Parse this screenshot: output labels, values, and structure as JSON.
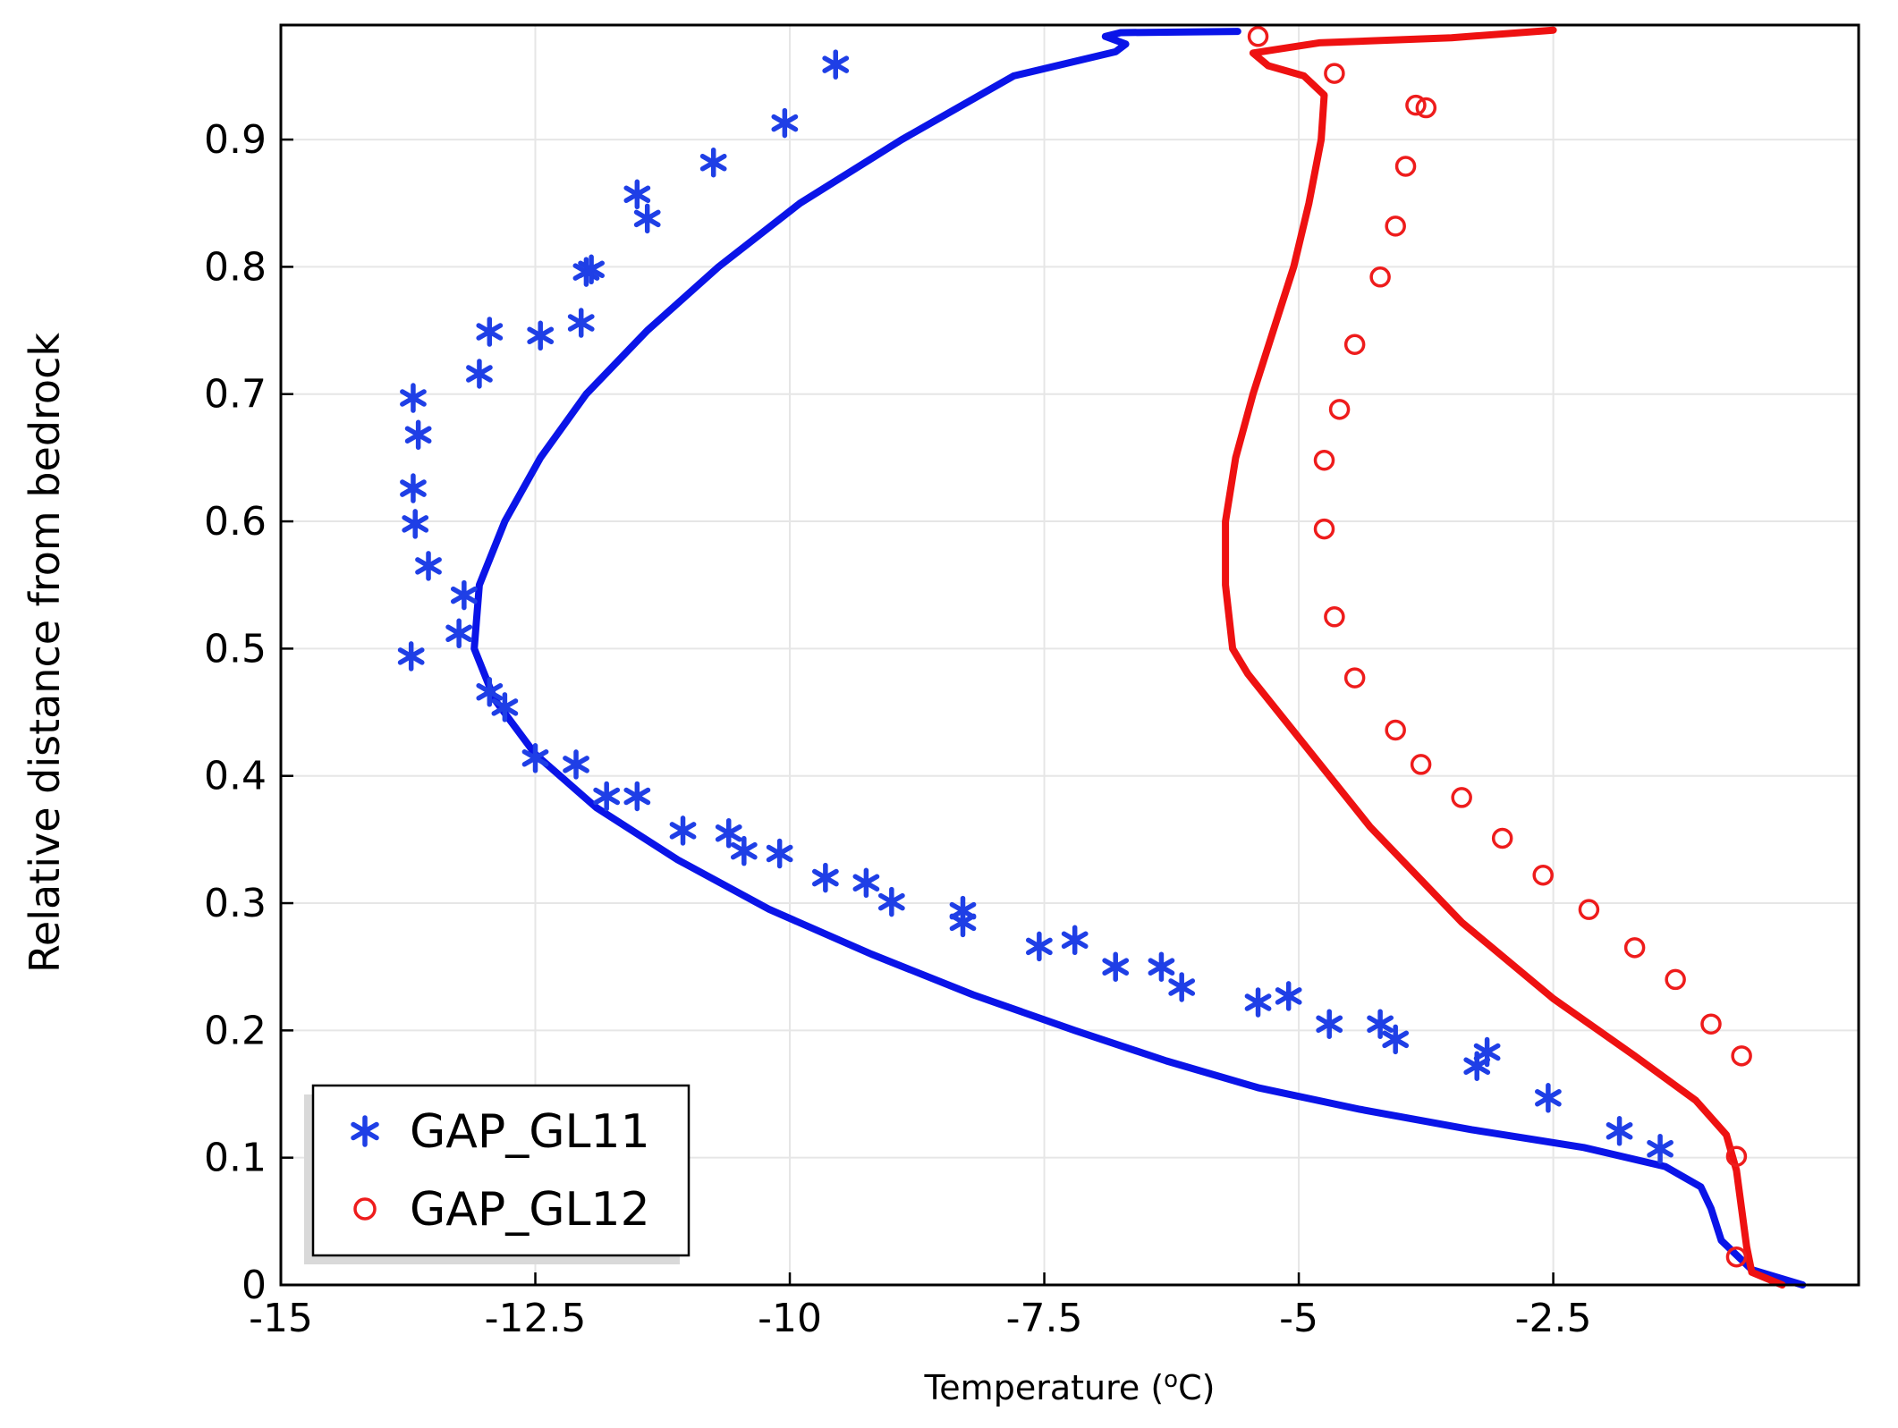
{
  "chart_data": {
    "type": "scatter",
    "title": "",
    "xlabel": "Temperature (",
    "xlabel_sup": "o",
    "xlabel_unit": "C)",
    "ylabel": "Relative distance from bedrock",
    "xlim": [
      -15,
      0.5
    ],
    "ylim": [
      0,
      0.99
    ],
    "grid": true,
    "legend_position": "bottom-left",
    "x_ticks": [
      -15,
      -12.5,
      -10,
      -7.5,
      -5,
      -2.5
    ],
    "x_tick_labels": [
      "-15",
      "-12.5",
      "-10",
      "-7.5",
      "-5",
      "-2.5"
    ],
    "y_ticks": [
      0,
      0.1,
      0.2,
      0.3,
      0.4,
      0.5,
      0.6,
      0.7,
      0.8,
      0.9
    ],
    "y_tick_labels": [
      "0",
      "0.1",
      "0.2",
      "0.3",
      "0.4",
      "0.5",
      "0.6",
      "0.7",
      "0.8",
      "0.9"
    ],
    "series": [
      {
        "name": "GAP_GL11",
        "kind": "scatter",
        "marker": "asterisk",
        "color": "#1f3fe6",
        "points": [
          [
            -9.55,
            0.959
          ],
          [
            -10.05,
            0.913
          ],
          [
            -10.75,
            0.882
          ],
          [
            -11.5,
            0.857
          ],
          [
            -11.4,
            0.838
          ],
          [
            -12.0,
            0.796
          ],
          [
            -11.95,
            0.798
          ],
          [
            -12.05,
            0.756
          ],
          [
            -12.45,
            0.746
          ],
          [
            -12.95,
            0.749
          ],
          [
            -13.05,
            0.716
          ],
          [
            -13.7,
            0.697
          ],
          [
            -13.65,
            0.668
          ],
          [
            -13.7,
            0.626
          ],
          [
            -13.68,
            0.598
          ],
          [
            -13.55,
            0.565
          ],
          [
            -13.2,
            0.542
          ],
          [
            -13.25,
            0.512
          ],
          [
            -13.72,
            0.494
          ],
          [
            -12.95,
            0.466
          ],
          [
            -12.8,
            0.454
          ],
          [
            -12.5,
            0.414
          ],
          [
            -12.1,
            0.409
          ],
          [
            -11.8,
            0.384
          ],
          [
            -11.5,
            0.384
          ],
          [
            -11.05,
            0.357
          ],
          [
            -10.6,
            0.355
          ],
          [
            -10.45,
            0.341
          ],
          [
            -10.1,
            0.339
          ],
          [
            -9.65,
            0.32
          ],
          [
            -9.25,
            0.316
          ],
          [
            -9.0,
            0.301
          ],
          [
            -8.3,
            0.294
          ],
          [
            -8.3,
            0.285
          ],
          [
            -7.55,
            0.266
          ],
          [
            -7.2,
            0.271
          ],
          [
            -6.8,
            0.25
          ],
          [
            -6.35,
            0.25
          ],
          [
            -6.15,
            0.234
          ],
          [
            -5.4,
            0.222
          ],
          [
            -5.1,
            0.227
          ],
          [
            -4.7,
            0.205
          ],
          [
            -4.2,
            0.205
          ],
          [
            -4.05,
            0.193
          ],
          [
            -3.25,
            0.172
          ],
          [
            -3.15,
            0.183
          ],
          [
            -2.55,
            0.147
          ],
          [
            -1.85,
            0.121
          ],
          [
            -1.45,
            0.107
          ]
        ]
      },
      {
        "name": "GAP_GL12",
        "kind": "scatter",
        "marker": "circle",
        "color": "#ee1c1c",
        "points": [
          [
            -5.4,
            0.981
          ],
          [
            -4.65,
            0.952
          ],
          [
            -3.85,
            0.927
          ],
          [
            -3.75,
            0.925
          ],
          [
            -3.95,
            0.879
          ],
          [
            -4.05,
            0.832
          ],
          [
            -4.2,
            0.792
          ],
          [
            -4.45,
            0.739
          ],
          [
            -4.6,
            0.688
          ],
          [
            -4.75,
            0.648
          ],
          [
            -4.75,
            0.594
          ],
          [
            -4.65,
            0.525
          ],
          [
            -4.45,
            0.477
          ],
          [
            -4.05,
            0.436
          ],
          [
            -3.8,
            0.409
          ],
          [
            -3.4,
            0.383
          ],
          [
            -3.0,
            0.351
          ],
          [
            -2.6,
            0.322
          ],
          [
            -2.15,
            0.295
          ],
          [
            -1.7,
            0.265
          ],
          [
            -1.3,
            0.24
          ],
          [
            -0.95,
            0.205
          ],
          [
            -0.65,
            0.18
          ],
          [
            -0.7,
            0.101
          ],
          [
            -0.7,
            0.022
          ]
        ]
      },
      {
        "name": "GAP_GL11 model",
        "kind": "line",
        "color": "#0a14e8",
        "points": [
          [
            -0.05,
            0.0
          ],
          [
            -0.55,
            0.012
          ],
          [
            -0.85,
            0.035
          ],
          [
            -0.95,
            0.06
          ],
          [
            -1.05,
            0.077
          ],
          [
            -1.4,
            0.093
          ],
          [
            -2.2,
            0.108
          ],
          [
            -3.3,
            0.122
          ],
          [
            -4.4,
            0.138
          ],
          [
            -5.4,
            0.155
          ],
          [
            -6.3,
            0.176
          ],
          [
            -7.2,
            0.2
          ],
          [
            -8.2,
            0.228
          ],
          [
            -9.2,
            0.26
          ],
          [
            -10.2,
            0.295
          ],
          [
            -11.1,
            0.334
          ],
          [
            -11.9,
            0.375
          ],
          [
            -12.5,
            0.417
          ],
          [
            -12.9,
            0.46
          ],
          [
            -13.1,
            0.5
          ],
          [
            -13.05,
            0.55
          ],
          [
            -12.8,
            0.6
          ],
          [
            -12.45,
            0.65
          ],
          [
            -12.0,
            0.7
          ],
          [
            -11.4,
            0.75
          ],
          [
            -10.7,
            0.8
          ],
          [
            -9.9,
            0.85
          ],
          [
            -8.9,
            0.9
          ],
          [
            -7.8,
            0.95
          ],
          [
            -6.8,
            0.969
          ],
          [
            -6.7,
            0.975
          ],
          [
            -6.9,
            0.981
          ],
          [
            -6.75,
            0.984
          ],
          [
            -5.6,
            0.985
          ]
        ]
      },
      {
        "name": "GAP_GL12 model",
        "kind": "line",
        "color": "#ee1111",
        "points": [
          [
            -0.25,
            0.0
          ],
          [
            -0.55,
            0.01
          ],
          [
            -0.6,
            0.03
          ],
          [
            -0.65,
            0.06
          ],
          [
            -0.7,
            0.09
          ],
          [
            -0.8,
            0.118
          ],
          [
            -1.1,
            0.145
          ],
          [
            -1.7,
            0.18
          ],
          [
            -2.5,
            0.225
          ],
          [
            -3.4,
            0.285
          ],
          [
            -4.3,
            0.36
          ],
          [
            -5.0,
            0.43
          ],
          [
            -5.5,
            0.48
          ],
          [
            -5.65,
            0.5
          ],
          [
            -5.72,
            0.55
          ],
          [
            -5.72,
            0.6
          ],
          [
            -5.62,
            0.65
          ],
          [
            -5.45,
            0.7
          ],
          [
            -5.25,
            0.75
          ],
          [
            -5.05,
            0.8
          ],
          [
            -4.9,
            0.85
          ],
          [
            -4.78,
            0.9
          ],
          [
            -4.75,
            0.935
          ],
          [
            -4.95,
            0.95
          ],
          [
            -5.3,
            0.958
          ],
          [
            -5.45,
            0.968
          ],
          [
            -4.8,
            0.976
          ],
          [
            -3.5,
            0.98
          ],
          [
            -2.5,
            0.986
          ]
        ]
      }
    ]
  },
  "legend": {
    "items": [
      {
        "label": "GAP_GL11",
        "color": "#1f3fe6",
        "marker": "asterisk"
      },
      {
        "label": "GAP_GL12",
        "color": "#ee1c1c",
        "marker": "circle"
      }
    ]
  }
}
